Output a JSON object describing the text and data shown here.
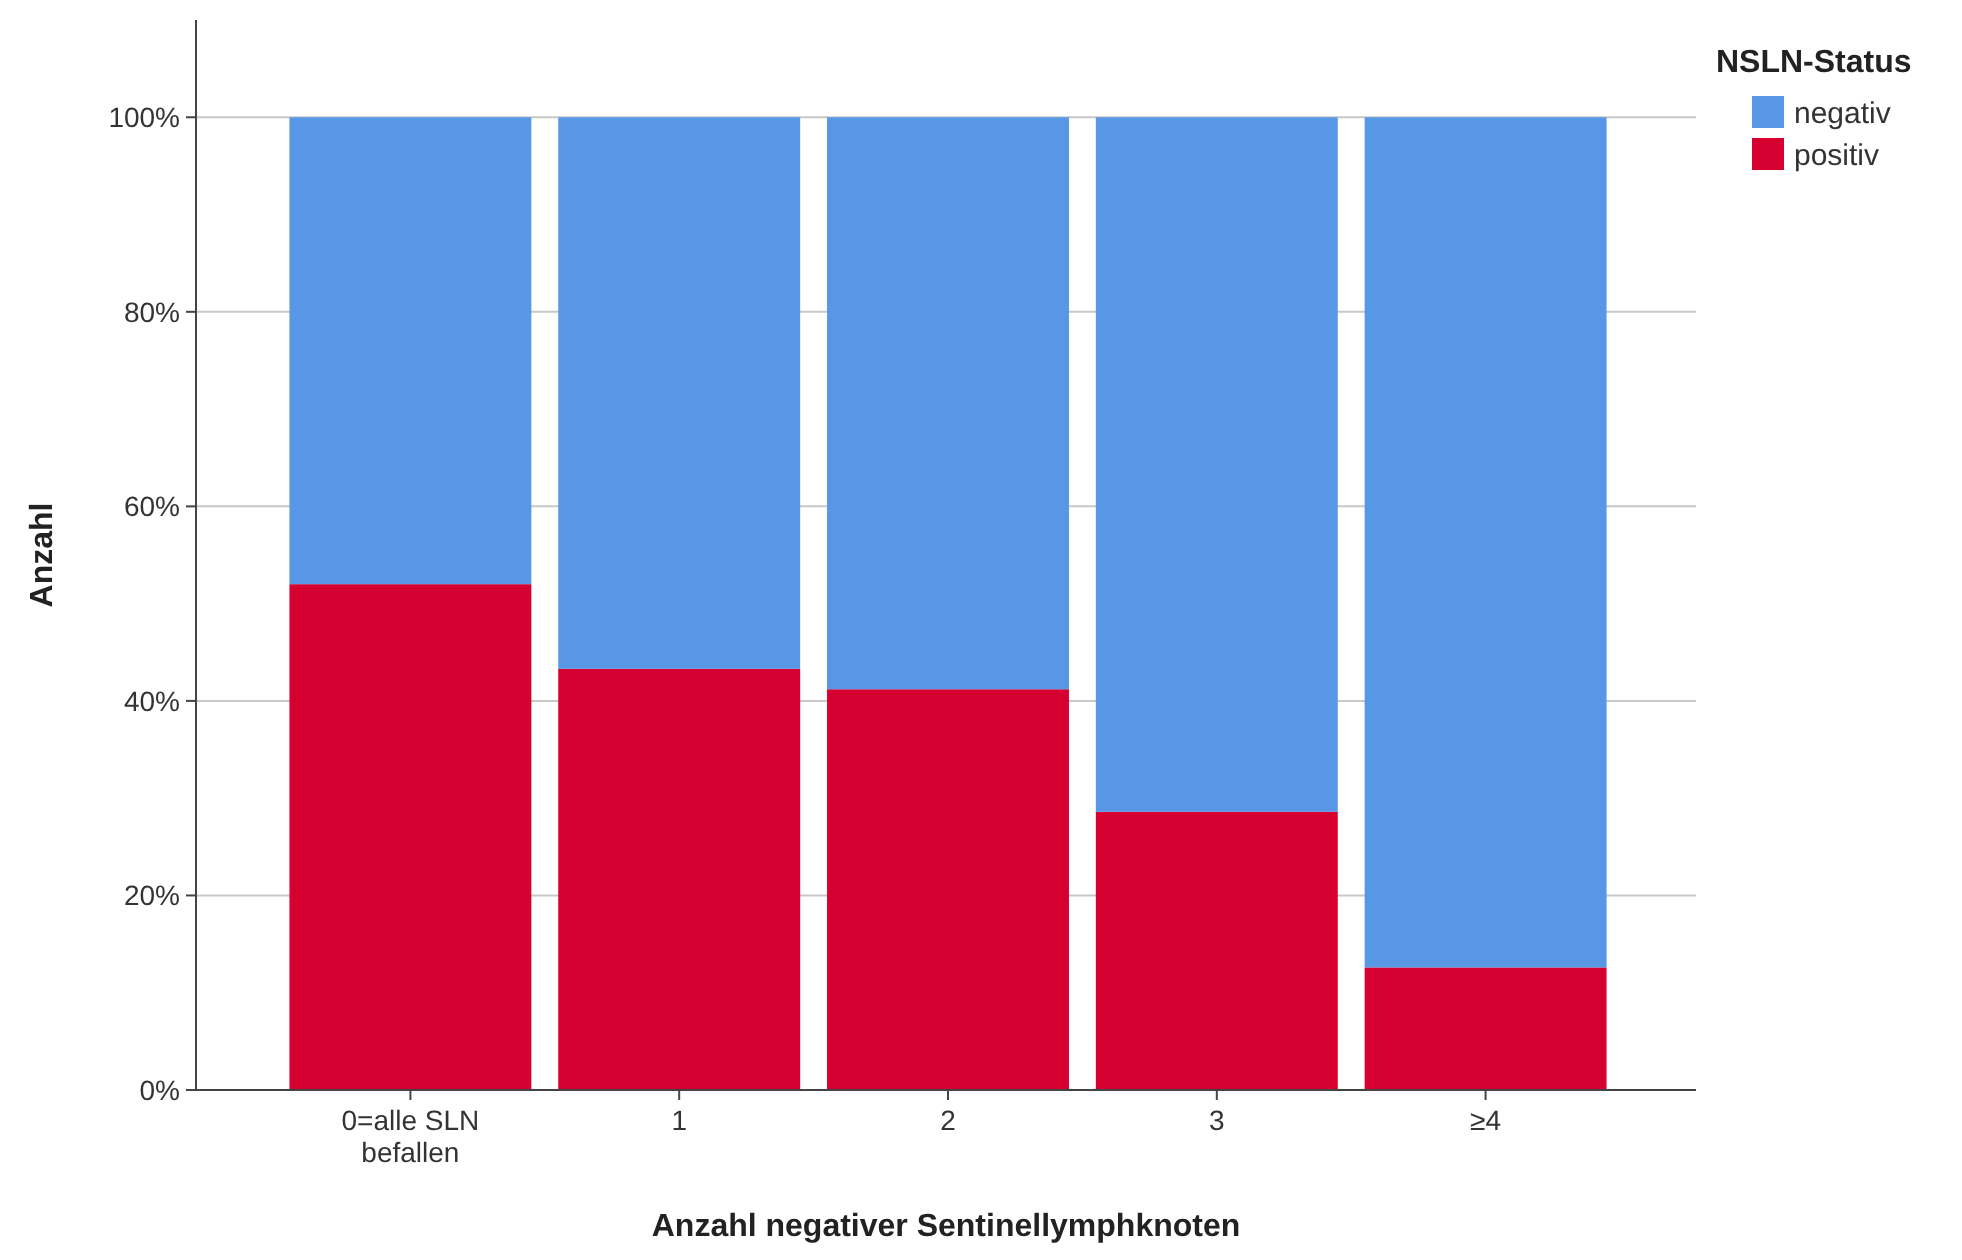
{
  "chart_data": {
    "type": "bar",
    "stacked": true,
    "xlabel": "Anzahl negativer Sentinellymphknoten",
    "ylabel": "Anzahl",
    "legend_title": "NSLN-Status",
    "categories": [
      "0=alle SLN befallen",
      "1",
      "2",
      "3",
      "≥4"
    ],
    "series": [
      {
        "name": "positiv",
        "color": "#d5002f",
        "values": [
          52,
          43.3,
          41.2,
          28.6,
          12.6
        ]
      },
      {
        "name": "negativ",
        "color": "#5797e6",
        "values": [
          48,
          56.7,
          58.8,
          71.4,
          87.4
        ]
      }
    ],
    "ylim": [
      0,
      110
    ],
    "yticks": [
      {
        "value": 0,
        "label": "0%"
      },
      {
        "value": 20,
        "label": "20%"
      },
      {
        "value": 40,
        "label": "40%"
      },
      {
        "value": 60,
        "label": "60%"
      },
      {
        "value": 80,
        "label": "80%"
      },
      {
        "value": 100,
        "label": "100%"
      }
    ],
    "grid": "y",
    "legend": "top right"
  }
}
